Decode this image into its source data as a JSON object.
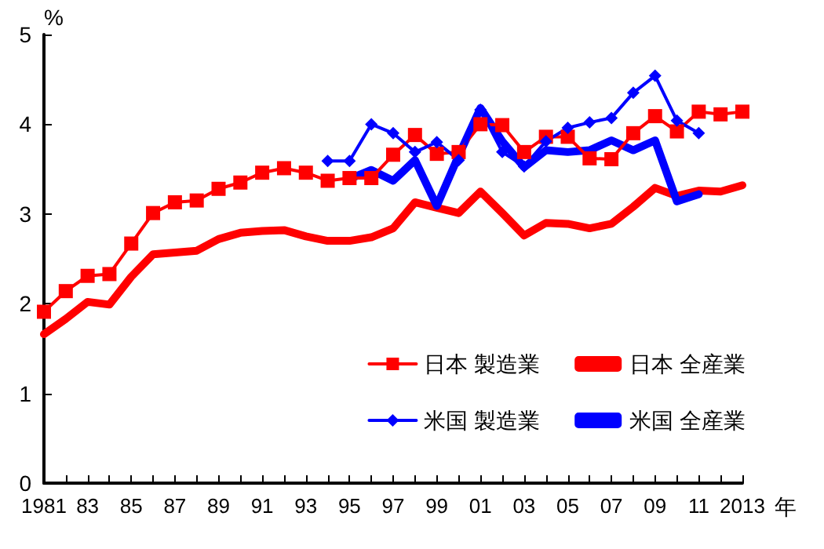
{
  "chart_data": {
    "type": "line",
    "ylabel": "%",
    "xlabel": "年",
    "categories": [
      "1981",
      null,
      "83",
      null,
      "85",
      null,
      "87",
      null,
      "89",
      null,
      "91",
      null,
      "93",
      null,
      "95",
      null,
      "97",
      null,
      "99",
      null,
      "01",
      null,
      "03",
      null,
      "05",
      null,
      "07",
      null,
      "09",
      null,
      "11",
      null,
      "2013"
    ],
    "ylim": [
      0,
      5
    ],
    "yticks": [
      0,
      1,
      2,
      3,
      4,
      5
    ],
    "grid": false,
    "legend": "bottom right",
    "series": [
      {
        "name": "日本 製造業",
        "color": "#ff0000",
        "marker": "square",
        "values": [
          1.91,
          2.14,
          2.31,
          2.33,
          2.67,
          3.01,
          3.13,
          3.15,
          3.28,
          3.35,
          3.46,
          3.51,
          3.46,
          3.37,
          3.4,
          3.4,
          3.66,
          3.88,
          3.67,
          3.69,
          4.0,
          3.99,
          3.69,
          3.86,
          3.86,
          3.62,
          3.61,
          3.9,
          4.09,
          3.92,
          4.14,
          4.11,
          4.14
        ]
      },
      {
        "name": "日本 全産業",
        "color": "#ff0000",
        "marker": "none",
        "values": [
          1.66,
          1.83,
          2.02,
          1.99,
          2.3,
          2.55,
          2.57,
          2.59,
          2.72,
          2.79,
          2.81,
          2.82,
          2.75,
          2.7,
          2.7,
          2.74,
          2.84,
          3.13,
          3.07,
          3.01,
          3.25,
          3.01,
          2.76,
          2.9,
          2.89,
          2.84,
          2.89,
          3.08,
          3.29,
          3.2,
          3.26,
          3.25,
          3.32
        ]
      },
      {
        "name": "米国 製造業",
        "color": "#0000ff",
        "marker": "diamond",
        "values": [
          null,
          null,
          null,
          null,
          null,
          null,
          null,
          null,
          null,
          null,
          null,
          null,
          null,
          3.59,
          3.59,
          4.0,
          3.9,
          3.69,
          3.8,
          3.6,
          4.16,
          3.69,
          3.53,
          3.81,
          3.96,
          4.02,
          4.07,
          4.35,
          4.54,
          4.04,
          3.9,
          null,
          null
        ]
      },
      {
        "name": "米国 全産業",
        "color": "#0000ff",
        "marker": "none",
        "values": [
          null,
          null,
          null,
          null,
          null,
          null,
          null,
          null,
          null,
          null,
          null,
          null,
          null,
          null,
          3.39,
          3.49,
          3.37,
          3.6,
          3.09,
          3.65,
          4.18,
          3.81,
          3.52,
          3.71,
          3.69,
          3.71,
          3.82,
          3.71,
          3.82,
          3.14,
          3.22,
          null,
          null
        ]
      }
    ]
  }
}
